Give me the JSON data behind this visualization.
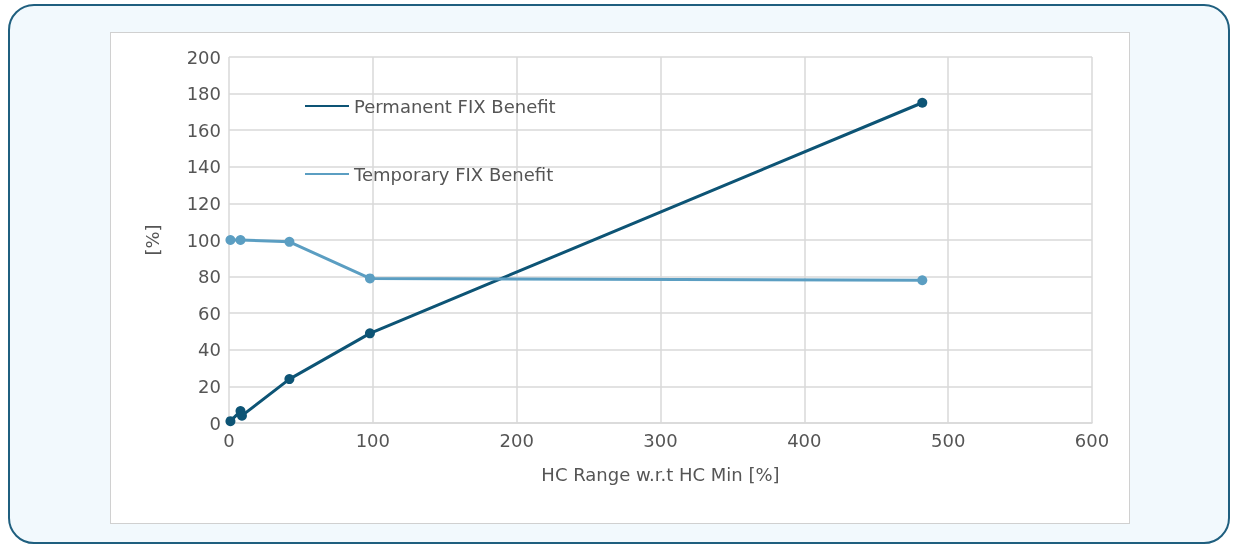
{
  "chart_data": {
    "type": "line",
    "xlabel": "HC Range w.r.t HC Min [%]",
    "ylabel": "[%]",
    "xlim": [
      0,
      600
    ],
    "xticks": [
      0,
      100,
      200,
      300,
      400,
      500,
      600
    ],
    "ylim": [
      0,
      200
    ],
    "yticks": [
      0,
      20,
      40,
      60,
      80,
      100,
      120,
      140,
      160,
      180,
      200
    ],
    "grid": true,
    "legend": "top left",
    "marker": "circle",
    "line_style": "solid",
    "series": [
      {
        "name": "Permanent FIX Benefit",
        "color": "#0d5475",
        "x": [
          1,
          8,
          9,
          42,
          98,
          482
        ],
        "values": [
          1,
          6.5,
          4,
          24,
          49,
          175
        ]
      },
      {
        "name": "Temporary FIX Benefit",
        "color": "#5b9ec2",
        "x": [
          1,
          8,
          42,
          98,
          482
        ],
        "values": [
          100,
          100,
          99,
          79,
          78
        ]
      }
    ]
  }
}
